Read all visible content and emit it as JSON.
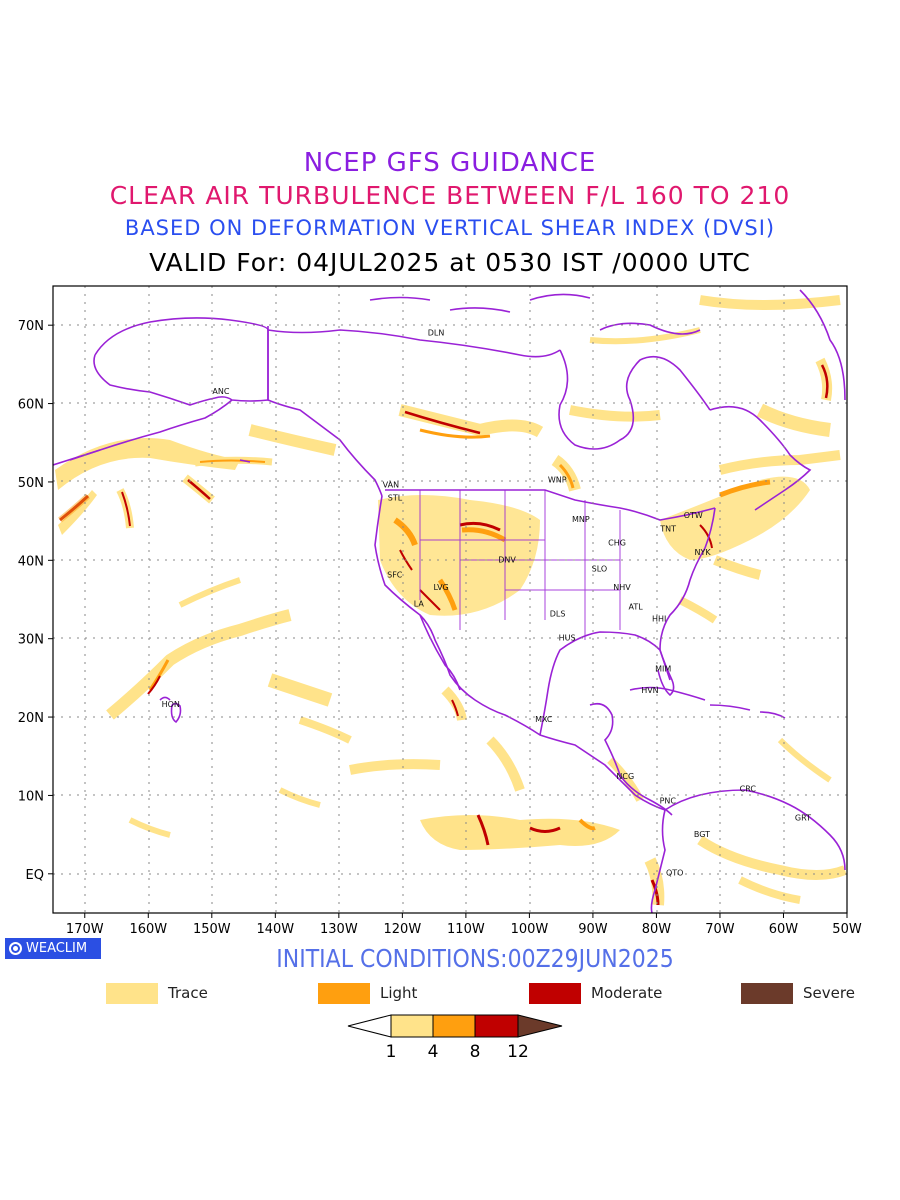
{
  "titles": {
    "line1": "NCEP GFS GUIDANCE",
    "line2": "CLEAR AIR TURBULENCE BETWEEN F/L 160 TO 210",
    "line3": "BASED ON DEFORMATION VERTICAL SHEAR INDEX (DVSI)",
    "line4": "VALID For: 04JUL2025 at 0530 IST /0000 UTC"
  },
  "colors": {
    "title1": "#8a1ee0",
    "title2": "#e0186e",
    "title3": "#2a4ef0",
    "trace": "#ffe38a",
    "light": "#ff9f0f",
    "moderate": "#c00000",
    "severe": "#6b3a2a",
    "boundary": "#9a22d6"
  },
  "map": {
    "lat_labels": [
      "70N",
      "60N",
      "50N",
      "40N",
      "30N",
      "20N",
      "10N",
      "EQ"
    ],
    "lon_labels": [
      "170W",
      "160W",
      "150W",
      "140W",
      "130W",
      "120W",
      "110W",
      "100W",
      "90W",
      "80W",
      "70W",
      "60W",
      "50W"
    ],
    "extent": {
      "lon_min": -175,
      "lon_max": -50,
      "lat_min": -5,
      "lat_max": 75
    },
    "stations": [
      {
        "name": "ANC",
        "lon": -149.9,
        "lat": 61.2
      },
      {
        "name": "DLN",
        "lon": -116,
        "lat": 68.7
      },
      {
        "name": "VAN",
        "lon": -123.1,
        "lat": 49.3
      },
      {
        "name": "STL",
        "lon": -122.3,
        "lat": 47.6
      },
      {
        "name": "WNP",
        "lon": -97.1,
        "lat": 49.9
      },
      {
        "name": "MNP",
        "lon": -93.3,
        "lat": 44.9
      },
      {
        "name": "OTW",
        "lon": -75.7,
        "lat": 45.4
      },
      {
        "name": "TNT",
        "lon": -79.4,
        "lat": 43.7
      },
      {
        "name": "CHG",
        "lon": -87.6,
        "lat": 41.9
      },
      {
        "name": "NYK",
        "lon": -74,
        "lat": 40.7
      },
      {
        "name": "DNV",
        "lon": -104.9,
        "lat": 39.7
      },
      {
        "name": "SLO",
        "lon": -90.2,
        "lat": 38.6
      },
      {
        "name": "SFC",
        "lon": -122.4,
        "lat": 37.8
      },
      {
        "name": "LVG",
        "lon": -115.1,
        "lat": 36.2
      },
      {
        "name": "NHV",
        "lon": -86.8,
        "lat": 36.2
      },
      {
        "name": "LA",
        "lon": -118.2,
        "lat": 34.1
      },
      {
        "name": "ATL",
        "lon": -84.4,
        "lat": 33.7
      },
      {
        "name": "DLS",
        "lon": -96.8,
        "lat": 32.8
      },
      {
        "name": "HHI",
        "lon": -80.7,
        "lat": 32.2
      },
      {
        "name": "HUS",
        "lon": -95.4,
        "lat": 29.8
      },
      {
        "name": "MIM",
        "lon": -80.2,
        "lat": 25.8
      },
      {
        "name": "HVN",
        "lon": -82.4,
        "lat": 23.1
      },
      {
        "name": "HON",
        "lon": -157.9,
        "lat": 21.3
      },
      {
        "name": "MXC",
        "lon": -99.1,
        "lat": 19.4
      },
      {
        "name": "NCG",
        "lon": -86.3,
        "lat": 12.1
      },
      {
        "name": "CRC",
        "lon": -66.9,
        "lat": 10.5
      },
      {
        "name": "PNC",
        "lon": -79.5,
        "lat": 9.0
      },
      {
        "name": "GRT",
        "lon": -58.2,
        "lat": 6.8
      },
      {
        "name": "BGT",
        "lon": -74.1,
        "lat": 4.7
      },
      {
        "name": "QTO",
        "lon": -78.5,
        "lat": -0.2
      }
    ]
  },
  "footer": {
    "logo": "WEACLIM",
    "initial_conditions": "INITIAL CONDITIONS:00Z29JUN2025"
  },
  "legend": {
    "items": [
      {
        "label": "Trace",
        "color": "#ffe38a"
      },
      {
        "label": "Light",
        "color": "#ff9f0f"
      },
      {
        "label": "Moderate",
        "color": "#c00000"
      },
      {
        "label": "Severe",
        "color": "#6b3a2a"
      }
    ],
    "colorbar_ticks": [
      "1",
      "4",
      "8",
      "12"
    ]
  }
}
